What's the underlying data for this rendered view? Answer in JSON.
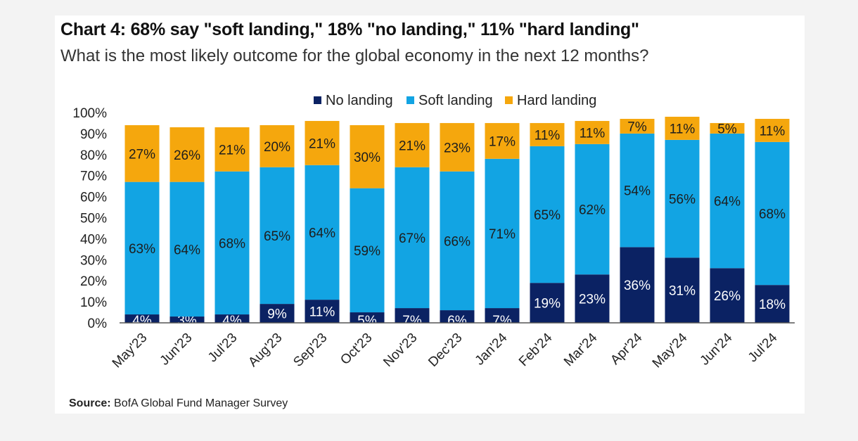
{
  "title": "Chart 4: 68% say \"soft landing,\" 18% \"no landing,\" 11% \"hard landing\"",
  "subtitle": "What is the most likely outcome for the global economy in the next 12 months?",
  "source_label": "Source:",
  "source_text": "BofA Global Fund Manager Survey",
  "colors": {
    "no_landing": "#0b2263",
    "soft_landing": "#12a4e3",
    "hard_landing": "#f5a70d"
  },
  "chart_data": {
    "type": "bar",
    "stacked": true,
    "categories": [
      "May'23",
      "Jun'23",
      "Jul'23",
      "Aug'23",
      "Sep'23",
      "Oct'23",
      "Nov'23",
      "Dec'23",
      "Jan'24",
      "Feb'24",
      "Mar'24",
      "Apr'24",
      "May'24",
      "Jun'24",
      "Jul'24"
    ],
    "series": [
      {
        "name": "No landing",
        "values": [
          4,
          3,
          4,
          9,
          11,
          5,
          7,
          6,
          7,
          19,
          23,
          36,
          31,
          26,
          18
        ]
      },
      {
        "name": "Soft landing",
        "values": [
          63,
          64,
          68,
          65,
          64,
          59,
          67,
          66,
          71,
          65,
          62,
          54,
          56,
          64,
          68
        ]
      },
      {
        "name": "Hard landing",
        "values": [
          27,
          26,
          21,
          20,
          21,
          30,
          21,
          23,
          17,
          11,
          11,
          7,
          11,
          5,
          11
        ]
      }
    ],
    "data_label_suffix": "%",
    "ylim": [
      0,
      100
    ],
    "yticks": [
      "0%",
      "10%",
      "20%",
      "30%",
      "40%",
      "50%",
      "60%",
      "70%",
      "80%",
      "90%",
      "100%"
    ],
    "xlabel": "",
    "ylabel": "",
    "legend_position": "top-center",
    "grid": false
  }
}
